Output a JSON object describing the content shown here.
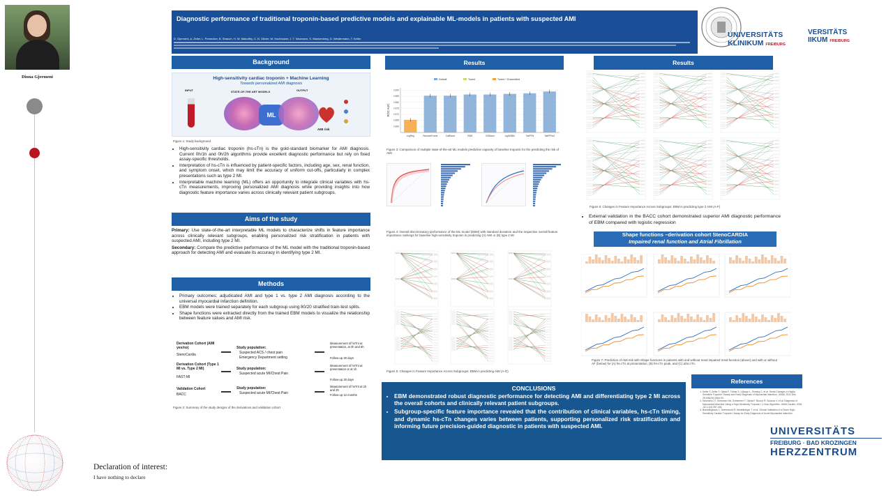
{
  "author": {
    "name": "Diona Gjermeni"
  },
  "declaration": {
    "title": "Declaration of interest:",
    "text": "I have nothing to declare"
  },
  "poster": {
    "title": "Diagnostic performance of traditional troponin-based predictive models and explainable ML-models in patients with suspected AMI",
    "authors": "D. Gjermeni, A. Zeller, L. Pernecker, B. Strauch, H. W. Mabuffey, C. B. Olivier, W. Hochholzer, J. T. Neumann, S. Blankenberg, D. Westermann, T. Keller"
  },
  "logos": {
    "uk_name": "UNIVERSITÄTS",
    "uk_sub": "KLINIKUM",
    "uk_city": "FREIBURG",
    "right_top": "VERSITÄTS",
    "right_sub": "IIKUM",
    "right_city": "FREIBURG",
    "hz_line1": "UNIVERSITÄTS",
    "hz_line2": "FREIBURG · BAD KROZINGEN",
    "hz_line3": "HERZZENTRUM"
  },
  "background": {
    "header": "Background",
    "figure_title": "High-sensitivity cardiac troponin + Machine Learning",
    "figure_subtitle": "Towards personalized AMI diagnosis",
    "figure_input": "INPUT",
    "figure_model": "STATE-OF-THE ART MODELS",
    "figure_output": "OUTPUT",
    "figure_ml": "ML",
    "figure_risk": "AMI risk",
    "caption": "Figure 1: Study background",
    "bullets": [
      "High-sensitivity cardiac troponin (hs-cTn) is the gold-standard biomarker for AMI diagnosis. Current 0h/1h and 0h/2h algorithms provide excellent diagnostic performance but rely on fixed assay-specific thresholds.",
      "Interpretation of hs-cTn is influenced by patient-specific factors, including age, sex, renal function, and symptom onset, which may limit the accuracy of uniform cut-offs, particularly in complex presentations such as type 2 MI.",
      "Interpretable machine learning (ML) offers an opportunity to integrate clinical variables with hs-cTn measurements, improving personalized AMI diagnosis while providing insights into how diagnostic feature importance varies across clinically relevant patient subgroups."
    ]
  },
  "aims": {
    "header": "Aims of the study",
    "primary_label": "Primary:",
    "primary": "Use state-of-the-art interpretable ML models to characterize shifts in feature importance across clinically relevant subgroups, enabling personalized risk stratification in patients with suspected AMI, including type 2 MI.",
    "secondary_label": "Secondary:",
    "secondary": "Compare the predictive performance of the ML model with the traditional troponin-based approach for detecting AMI and evaluate its accuracy in identifying type 2 MI."
  },
  "methods": {
    "header": "Methods",
    "bullets": [
      "Primary outcomes: adjudicated AMI and type 1 vs. type 2 AMI diagnosis according to the universal myocardial infarction definition.",
      "EBM models were trained separately for each subgroup using 80/20 stratified train-test splits.",
      "Shape functions were extracted directly from the trained EBM models to visualize the relationship between feature values and AMI risk."
    ],
    "cohorts": [
      {
        "name": "Derivation Cohort (AMI yes/no)",
        "sub": "StenoCardia",
        "pop": "Study population:",
        "items": [
          "Suspected ACS / chest pain",
          "Emergency Department setting"
        ],
        "meas": [
          "Measurement of hsTnI at presentation, at 3h and 6h",
          "Follow-up 30 days"
        ]
      },
      {
        "name": "Derivation Cohort (Type 1 MI vs. Type 2 MI)",
        "sub": "FAST-MI",
        "pop": "Study population:",
        "items": [
          "Suspected acute MI/Chest Pain"
        ],
        "meas": [
          "Measurement of hsTnI at presentation or at 1h",
          "Follow-up 30 days"
        ]
      },
      {
        "name": "Validation Cohort",
        "sub": "BACC",
        "pop": "Study population:",
        "items": [
          "Suspected acute MI/Chest Pain"
        ],
        "meas": [
          "Measurement of hsTnI at 1h and 3h",
          "Follow-up 12 months"
        ]
      }
    ],
    "caption": "Figure 2: Summary of the study designs of the derivations and validation cohort"
  },
  "results1": {
    "header": "Results",
    "legend": [
      "Default",
      "Tuned",
      "Tuned + Ensembled"
    ],
    "ylabel": "ROC AUC",
    "fig3_caption": "Figure 3: Comparison of multiple state-of-the-art ML models predictive capacity of baseline troponin for the predicting the risk of AMI",
    "fig4_caption": "Figure 4: Overall discriminatory performance of the ML-model (EBM) with standard deviation and the respective overall feature importance rankings for baseline high-sensitivity troponin in predicting (A) AMI or (B) type 2 MI",
    "fig5_caption": "Figure 5: Changes in Feature Importance Across Subgroups: EBM in predicting AMI (A-G)"
  },
  "results2": {
    "header": "Results",
    "fig6_caption": "Figure 6: Changes in Feature Importance Across Subgroups: EBM in predicting type 2 AMI (A-F)",
    "validation": "External validation in the BACC cohort demonstrated superior AMI diagnostic performance of EBM compared with logistic regression",
    "shape_header_1": "Shape functions –derivation cohort StenoCARDIA",
    "shape_header_2": "Impaired renal function and Atrial Fibrillation",
    "fig7_caption": "Figure 7: Prediction of AMI risk with Shape functions in patients with and without renal impaired renal function (above) and with or without AF (below) for (A) hs-cTn at presentation, (B) hs-cTn peak, and (C) Δhs-cTn."
  },
  "conclusions": {
    "header": "CONCLUSIONS",
    "bullets": [
      "EBM demonstrated robust diagnostic performance for detecting AMI and differentiating type 2 MI across the overall cohorts and clinically relevant patient subgroups.",
      "Subgroup-specific feature importance revealed that the contribution of clinical variables, hs-cTn timing, and dynamic hs-cTn changes varies between patients, supporting personalized risk stratification and informing future precision-guided diagnostic in patients with suspected AMI."
    ]
  },
  "references": {
    "header": "References",
    "items": [
      "Keller T, Zeller T, Ojeda F, Tzikas S, Lillpopp L, Sinning C, et al. Serial Changes in Highly Sensitive Troponin I Assay and Early Diagnosis of Myocardial Infarction. JAMA. 2011 Dec 28;306(24):2684-93.",
      "Neumann JT, Sörensen NA, Schwemer T, Ojeda F, Bourry R, Sciacca V, et al. Diagnosis of Myocardial Infarction Using a High-Sensitivity Troponin I 1-Hour Algorithm. JAMA Cardiol. 2016 Jul 1;1(4):397-404.",
      "Boeddinghaus J, Twerenbold R, Nestelberger T, et al. Clinical Validation of a Novel High-Sensitivity Cardiac Troponin I Assay for Early Diagnosis of Acute Myocardial Infarction."
    ]
  },
  "chart_data": {
    "type": "bar",
    "title": "",
    "ylabel": "ROC AUC",
    "categories": [
      "LogReg",
      "RandomForest",
      "CatBoost",
      "EBM",
      "XGBoost",
      "LightGBM",
      "TabPFN",
      "TabPFNv2"
    ],
    "series": [
      {
        "name": "Default",
        "values": [
          0.8655,
          0.8855,
          0.8855,
          0.8865,
          0.8865,
          0.887,
          0.8875,
          0.889
        ]
      }
    ],
    "ylim": [
      0.855,
      0.892
    ],
    "colors": {
      "Default": "#7fa8d6",
      "accent": "#f3a23b"
    }
  },
  "colors": {
    "header": "#1f5fa8",
    "conclusion_bg": "#17568f",
    "shape_header": "#2a6cb5",
    "brand_red": "#b51f2e",
    "brand_blue": "#1a4c8b"
  }
}
